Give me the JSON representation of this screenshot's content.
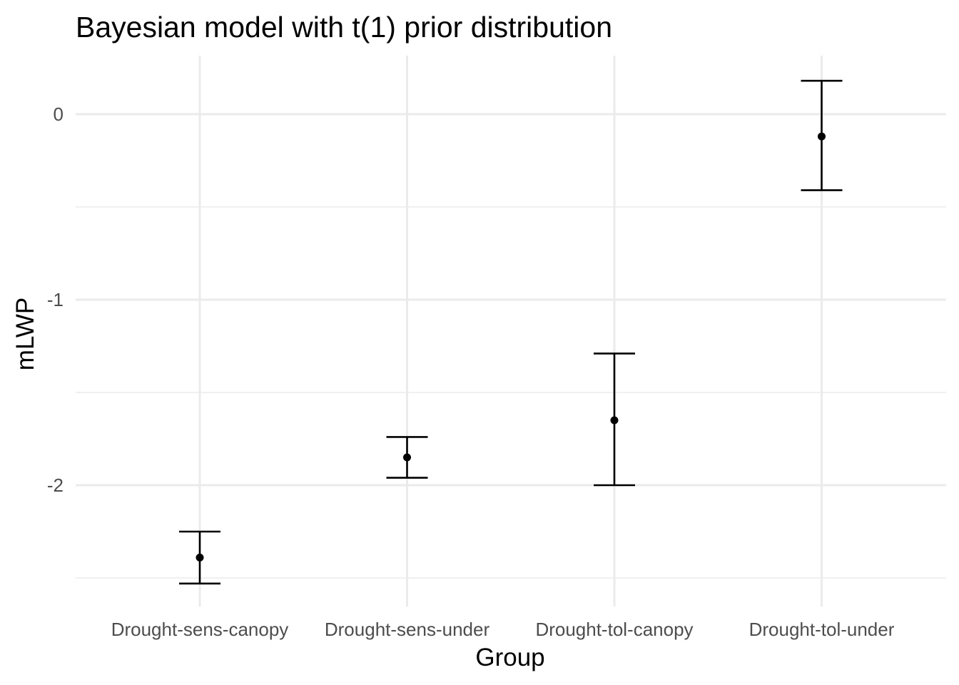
{
  "chart_data": {
    "type": "scatter",
    "title": "Bayesian model with t(1) prior distribution",
    "xlabel": "Group",
    "ylabel": "mLWP",
    "categories": [
      "Drought-sens-canopy",
      "Drought-sens-under",
      "Drought-tol-canopy",
      "Drought-tol-under"
    ],
    "estimate": [
      -2.39,
      -1.85,
      -1.65,
      -0.12
    ],
    "lower": [
      -2.53,
      -1.96,
      -2.0,
      -0.41
    ],
    "upper": [
      -2.25,
      -1.74,
      -1.29,
      0.18
    ],
    "y_ticks": [
      0,
      -1,
      -2
    ],
    "y_tick_labels": [
      "0",
      "-1",
      "-2"
    ],
    "ylim": [
      -2.66,
      0.31
    ],
    "grid": true,
    "legend": "none",
    "colors": {
      "point": "#000000",
      "errorbar": "#000000",
      "grid": "#ebebeb",
      "tick_label": "#4d4d4d",
      "background": "#ffffff"
    }
  }
}
